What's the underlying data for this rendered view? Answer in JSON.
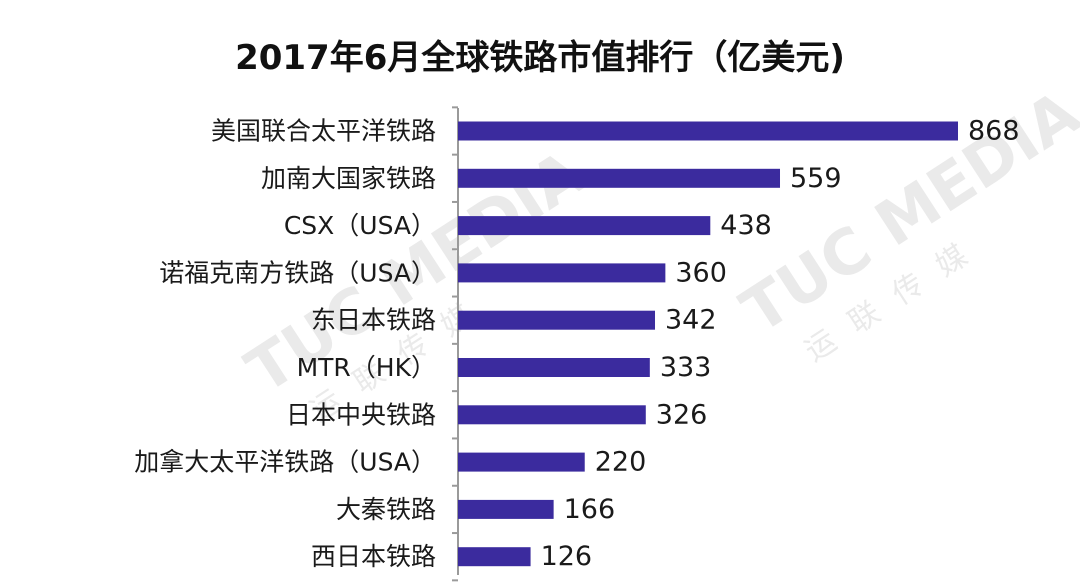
{
  "chart_data": {
    "type": "bar",
    "orientation": "horizontal",
    "title": "2017年6月全球铁路市值排行（亿美元)",
    "categories": [
      "美国联合太平洋铁路",
      "加南大国家铁路",
      "CSX（USA）",
      "诺福克南方铁路（USA）",
      "东日本铁路",
      "MTR（HK）",
      "日本中央铁路",
      "加拿大太平洋铁路（USA）",
      "大秦铁路",
      "西日本铁路"
    ],
    "values": [
      868,
      559,
      438,
      360,
      342,
      333,
      326,
      220,
      166,
      126
    ],
    "xlim": [
      0,
      868
    ],
    "bar_color": "#3b2b9e",
    "grid": false,
    "legend": "none",
    "data_labels": true
  },
  "watermark": {
    "text": "TUC MEDIA",
    "cn_chars": [
      "运",
      "联",
      "传",
      "媒"
    ]
  }
}
